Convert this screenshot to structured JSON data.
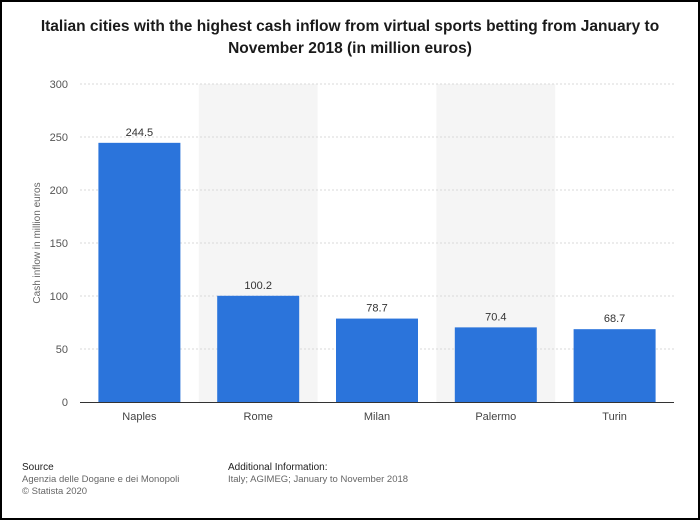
{
  "title": "Italian cities with the highest cash inflow from virtual sports betting from January to November 2018 (in million euros)",
  "chart_data": {
    "type": "bar",
    "categories": [
      "Naples",
      "Rome",
      "Milan",
      "Palermo",
      "Turin"
    ],
    "values": [
      244.5,
      100.2,
      78.7,
      70.4,
      68.7
    ],
    "data_labels": [
      "244.5",
      "100.2",
      "78.7",
      "70.4",
      "68.7"
    ],
    "ylabel": "Cash inflow in million euros",
    "xlabel": "",
    "ylim": [
      0,
      300
    ],
    "yticks": [
      0,
      50,
      100,
      150,
      200,
      250,
      300
    ],
    "bar_color": "#2b74db",
    "band_color": "#f5f5f5",
    "grid": true
  },
  "footer": {
    "source_heading": "Source",
    "source_line1": "Agenzia delle Dogane e dei Monopoli",
    "source_line2": "© Statista 2020",
    "info_heading": "Additional Information:",
    "info_line1": "Italy; AGIMEG; January to November 2018"
  }
}
